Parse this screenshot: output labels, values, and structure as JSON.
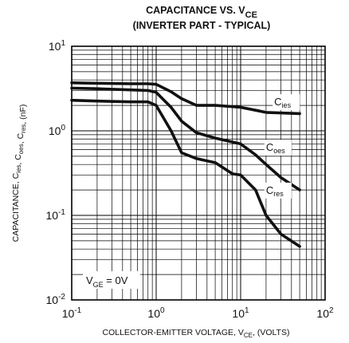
{
  "chart_data": {
    "type": "line",
    "title_line1": "CAPACITANCE VS. V",
    "title_line1_sub": "CE",
    "title_line2": "(INVERTER PART - TYPICAL)",
    "xlabel": "COLLECTOR-EMITTER VOLTAGE, V",
    "xlabel_sub": "CE",
    "xlabel_suffix": ", (VOLTS)",
    "ylabel": "CAPACITANCE, C",
    "ylabel_parts": [
      {
        "text": "CAPACITANCE, C",
        "sub": "ies"
      },
      {
        "text": ", C",
        "sub": "oes"
      },
      {
        "text": ", C",
        "sub": "res"
      },
      {
        "text": ", (nF)",
        "sub": ""
      }
    ],
    "x_scale": "log",
    "y_scale": "log",
    "xlim": [
      0.1,
      100
    ],
    "ylim": [
      0.01,
      10
    ],
    "x_ticks": [
      {
        "base": "10",
        "exp": "-1",
        "value": 0.1
      },
      {
        "base": "10",
        "exp": "0",
        "value": 1
      },
      {
        "base": "10",
        "exp": "1",
        "value": 10
      },
      {
        "base": "10",
        "exp": "2",
        "value": 100
      }
    ],
    "y_ticks": [
      {
        "base": "10",
        "exp": "-2",
        "value": 0.01
      },
      {
        "base": "10",
        "exp": "-1",
        "value": 0.1
      },
      {
        "base": "10",
        "exp": "0",
        "value": 1
      },
      {
        "base": "10",
        "exp": "1",
        "value": 10
      }
    ],
    "grid": true,
    "annotation": {
      "text": "V",
      "sub": "GE",
      "suffix": " = 0V"
    },
    "series": [
      {
        "name": "C",
        "name_sub": "ies",
        "x": [
          0.1,
          0.2,
          0.5,
          0.8,
          1.0,
          1.5,
          2.0,
          3.0,
          5.0,
          10,
          15,
          20,
          50
        ],
        "y": [
          3.7,
          3.65,
          3.6,
          3.6,
          3.55,
          2.9,
          2.4,
          2.0,
          2.0,
          1.9,
          1.75,
          1.65,
          1.6
        ]
      },
      {
        "name": "C",
        "name_sub": "oes",
        "x": [
          0.1,
          0.2,
          0.5,
          0.8,
          1.0,
          1.5,
          2.0,
          3.0,
          5.0,
          10,
          15,
          20,
          30,
          50
        ],
        "y": [
          3.2,
          3.15,
          3.05,
          3.0,
          2.85,
          1.9,
          1.3,
          0.95,
          0.82,
          0.7,
          0.52,
          0.4,
          0.28,
          0.2
        ]
      },
      {
        "name": "C",
        "name_sub": "res",
        "x": [
          0.1,
          0.2,
          0.5,
          0.8,
          1.0,
          1.5,
          2.0,
          3.0,
          5.0,
          8.0,
          10,
          15,
          20,
          30,
          50
        ],
        "y": [
          2.3,
          2.25,
          2.2,
          2.2,
          2.0,
          1.0,
          0.55,
          0.47,
          0.42,
          0.31,
          0.3,
          0.2,
          0.1,
          0.06,
          0.043
        ]
      }
    ],
    "curve_label_anchors": [
      {
        "x": 25,
        "y": 2.0
      },
      {
        "x": 20,
        "y": 0.58
      },
      {
        "x": 20,
        "y": 0.18
      }
    ]
  }
}
